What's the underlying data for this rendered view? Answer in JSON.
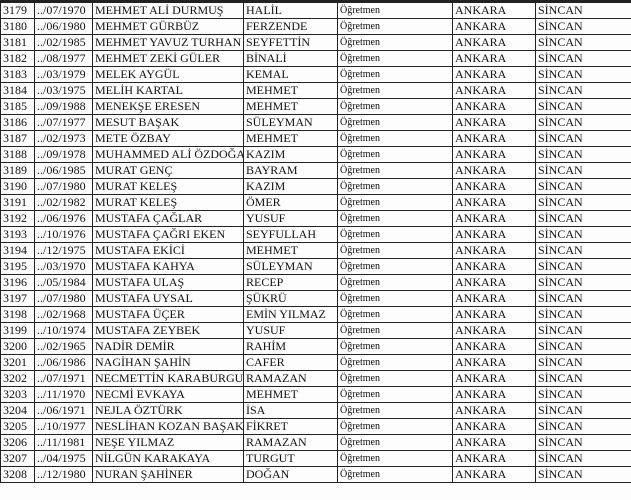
{
  "table": {
    "rows": [
      [
        "3179",
        "../07/1970",
        "MEHMET ALİ DURMUŞ",
        "HALİL",
        "Öğretmen",
        "ANKARA",
        "SİNCAN"
      ],
      [
        "3180",
        "../06/1980",
        "MEHMET GÜRBÜZ",
        "FERZENDE",
        "Öğretmen",
        "ANKARA",
        "SİNCAN"
      ],
      [
        "3181",
        "../02/1985",
        "MEHMET YAVUZ TURHAN",
        "SEYFETTİN",
        "Öğretmen",
        "ANKARA",
        "SİNCAN"
      ],
      [
        "3182",
        "../08/1977",
        "MEHMET ZEKİ GÜLER",
        "BİNALİ",
        "Öğretmen",
        "ANKARA",
        "SİNCAN"
      ],
      [
        "3183",
        "../03/1979",
        "MELEK AYGÜL",
        "KEMAL",
        "Öğretmen",
        "ANKARA",
        "SİNCAN"
      ],
      [
        "3184",
        "../03/1975",
        "MELİH KARTAL",
        "MEHMET",
        "Öğretmen",
        "ANKARA",
        "SİNCAN"
      ],
      [
        "3185",
        "../09/1988",
        "MENEKŞE ERESEN",
        "MEHMET",
        "Öğretmen",
        "ANKARA",
        "SİNCAN"
      ],
      [
        "3186",
        "../07/1977",
        "MESUT BAŞAK",
        "SÜLEYMAN",
        "Öğretmen",
        "ANKARA",
        "SİNCAN"
      ],
      [
        "3187",
        "../02/1973",
        "METE ÖZBAY",
        "MEHMET",
        "Öğretmen",
        "ANKARA",
        "SİNCAN"
      ],
      [
        "3188",
        "../09/1978",
        "MUHAMMED ALİ ÖZDOĞAN",
        "KAZIM",
        "Öğretmen",
        "ANKARA",
        "SİNCAN"
      ],
      [
        "3189",
        "../06/1985",
        "MURAT GENÇ",
        "BAYRAM",
        "Öğretmen",
        "ANKARA",
        "SİNCAN"
      ],
      [
        "3190",
        "../07/1980",
        "MURAT KELEŞ",
        "KAZIM",
        "Öğretmen",
        "ANKARA",
        "SİNCAN"
      ],
      [
        "3191",
        "../02/1982",
        "MURAT KELEŞ",
        "ÖMER",
        "Öğretmen",
        "ANKARA",
        "SİNCAN"
      ],
      [
        "3192",
        "../06/1976",
        "MUSTAFA ÇAĞLAR",
        "YUSUF",
        "Öğretmen",
        "ANKARA",
        "SİNCAN"
      ],
      [
        "3193",
        "../10/1976",
        "MUSTAFA ÇAĞRI EKEN",
        "SEYFULLAH",
        "Öğretmen",
        "ANKARA",
        "SİNCAN"
      ],
      [
        "3194",
        "../12/1975",
        "MUSTAFA EKİCİ",
        "MEHMET",
        "Öğretmen",
        "ANKARA",
        "SİNCAN"
      ],
      [
        "3195",
        "../03/1970",
        "MUSTAFA KAHYA",
        "SÜLEYMAN",
        "Öğretmen",
        "ANKARA",
        "SİNCAN"
      ],
      [
        "3196",
        "../05/1984",
        "MUSTAFA ULAŞ",
        "RECEP",
        "Öğretmen",
        "ANKARA",
        "SİNCAN"
      ],
      [
        "3197",
        "../07/1980",
        "MUSTAFA UYSAL",
        "ŞÜKRÜ",
        "Öğretmen",
        "ANKARA",
        "SİNCAN"
      ],
      [
        "3198",
        "../02/1968",
        "MUSTAFA ÜÇER",
        "EMİN YILMAZ",
        "Öğretmen",
        "ANKARA",
        "SİNCAN"
      ],
      [
        "3199",
        "../10/1974",
        "MUSTAFA ZEYBEK",
        "YUSUF",
        "Öğretmen",
        "ANKARA",
        "SİNCAN"
      ],
      [
        "3200",
        "../02/1965",
        "NADİR DEMİR",
        "RAHİM",
        "Öğretmen",
        "ANKARA",
        "SİNCAN"
      ],
      [
        "3201",
        "../06/1986",
        "NAGİHAN ŞAHİN",
        "CAFER",
        "Öğretmen",
        "ANKARA",
        "SİNCAN"
      ],
      [
        "3202",
        "../07/1971",
        "NECMETTİN KARABURGU",
        "RAMAZAN",
        "Öğretmen",
        "ANKARA",
        "SİNCAN"
      ],
      [
        "3203",
        "../11/1970",
        "NECMİ EVKAYA",
        "MEHMET",
        "Öğretmen",
        "ANKARA",
        "SİNCAN"
      ],
      [
        "3204",
        "../06/1971",
        "NEJLA ÖZTÜRK",
        "İSA",
        "Öğretmen",
        "ANKARA",
        "SİNCAN"
      ],
      [
        "3205",
        "../10/1977",
        "NESLİHAN KOZAN BAŞAK",
        "FİKRET",
        "Öğretmen",
        "ANKARA",
        "SİNCAN"
      ],
      [
        "3206",
        "../11/1981",
        "NEŞE YILMAZ",
        "RAMAZAN",
        "Öğretmen",
        "ANKARA",
        "SİNCAN"
      ],
      [
        "3207",
        "../04/1975",
        "NİLGÜN KARAKAYA",
        "TURGUT",
        "Öğretmen",
        "ANKARA",
        "SİNCAN"
      ],
      [
        "3208",
        "../12/1980",
        "NURAN ŞAHİNER",
        "DOĞAN",
        "Öğretmen",
        "ANKARA",
        "SİNCAN"
      ]
    ]
  }
}
